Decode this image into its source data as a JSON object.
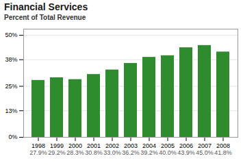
{
  "chart_data": {
    "type": "bar",
    "title": "Financial Services",
    "subtitle": "Percent of Total Revenue",
    "categories": [
      "1998",
      "1999",
      "2000",
      "2001",
      "2002",
      "2003",
      "2004",
      "2005",
      "2006",
      "2007",
      "2008"
    ],
    "values": [
      27.9,
      29.2,
      28.3,
      30.8,
      33.0,
      36.2,
      39.2,
      40.0,
      43.9,
      45.0,
      41.8
    ],
    "value_labels": [
      "27.9%",
      "29.2%",
      "28.3%",
      "30.8%",
      "33.0%",
      "36.2%",
      "39.2%",
      "40.0%",
      "43.9%",
      "45.0%",
      "41.8%"
    ],
    "data_labels": true,
    "color": "#2e8b2e",
    "ylim": [
      0,
      53
    ],
    "yticks": [
      {
        "value": 0,
        "label": "0%"
      },
      {
        "value": 13,
        "label": "13%"
      },
      {
        "value": 25,
        "label": "25%"
      },
      {
        "value": 38,
        "label": "38%"
      },
      {
        "value": 50,
        "label": "50%"
      }
    ],
    "grid": true
  }
}
